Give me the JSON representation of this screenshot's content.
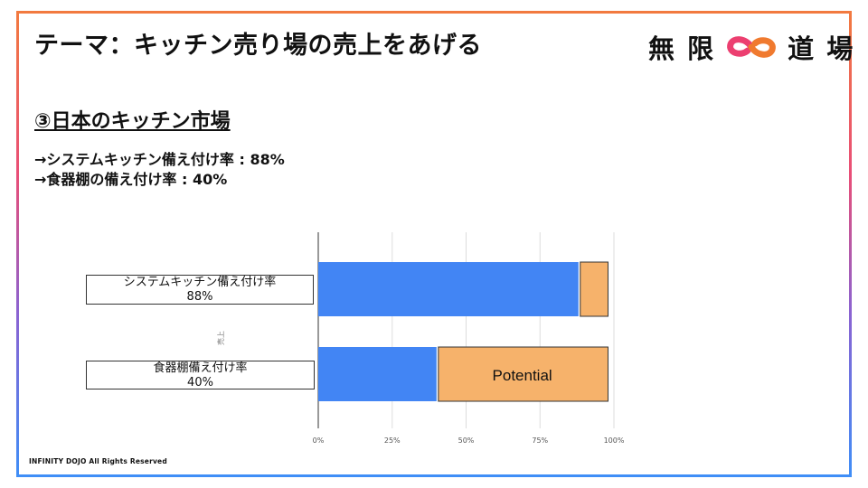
{
  "slide": {
    "title": "テーマ：キッチン売り場の売上をあげる",
    "section_heading": "③日本のキッチン市場",
    "stats": [
      "→システムキッチン備え付け率 : 88%",
      "→食器棚の備え付け率 : 40%"
    ],
    "footer": "INFINITY DOJO All Rights Reserved"
  },
  "logo": {
    "text_left": "無 限",
    "text_right": "道 場",
    "mark_icon": "infinity-mark-icon",
    "colors": {
      "pink": "#ec3f70",
      "orange": "#f07a2f"
    }
  },
  "chart_labels": [
    {
      "line1": "システムキッチン備え付け率",
      "line2": "88%"
    },
    {
      "line1": "食器棚備え付け率",
      "line2": "40%"
    }
  ],
  "chart_data": {
    "type": "bar",
    "orientation": "horizontal",
    "stacked": true,
    "categories": [
      "システムキッチン備え付け率",
      "食器棚備え付け率"
    ],
    "series": [
      {
        "values": [
          88,
          40
        ],
        "color": "#4285f4"
      },
      {
        "values": [
          10,
          58
        ],
        "color": "#f6b26b"
      }
    ],
    "annotations": [
      {
        "category_index": 1,
        "text": "Potential"
      }
    ],
    "ylabel": "売上",
    "xlim": [
      0,
      100
    ],
    "x_ticks": [
      "0%",
      "25%",
      "50%",
      "75%",
      "100%"
    ],
    "x_tick_values": [
      0,
      25,
      50,
      75,
      100
    ],
    "grid": true,
    "legend": "none"
  }
}
